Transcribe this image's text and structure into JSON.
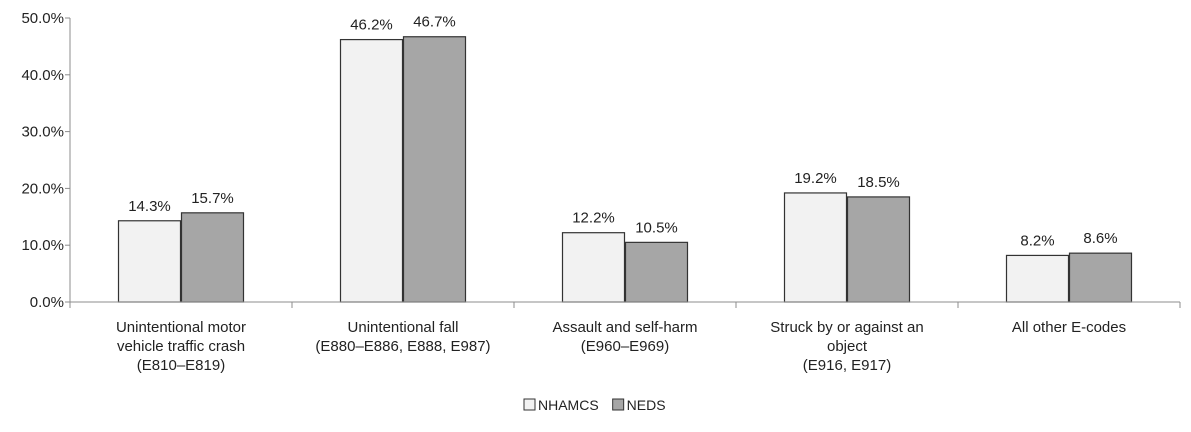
{
  "chart_data": {
    "type": "bar",
    "categories": [
      [
        "Unintentional motor",
        "vehicle traffic crash",
        "(E810–E819)"
      ],
      [
        "Unintentional fall",
        "(E880–E886, E888, E987)"
      ],
      [
        "Assault and self-harm",
        "(E960–E969)"
      ],
      [
        "Struck by or against an",
        "object",
        "(E916, E917)"
      ],
      [
        "All other E-codes"
      ]
    ],
    "series": [
      {
        "name": "NHAMCS",
        "color": "#f2f2f2",
        "values": [
          14.3,
          46.2,
          12.2,
          19.2,
          8.2
        ],
        "value_labels": [
          "14.3%",
          "46.2%",
          "12.2%",
          "19.2%",
          "8.2%"
        ]
      },
      {
        "name": "NEDS",
        "color": "#a6a6a6",
        "values": [
          15.7,
          46.7,
          10.5,
          18.5,
          8.6
        ],
        "value_labels": [
          "15.7%",
          "46.7%",
          "10.5%",
          "18.5%",
          "8.6%"
        ]
      }
    ],
    "yticks": [
      {
        "value": 0,
        "label": "0.0%"
      },
      {
        "value": 10,
        "label": "10.0%"
      },
      {
        "value": 20,
        "label": "20.0%"
      },
      {
        "value": 30,
        "label": "30.0%"
      },
      {
        "value": 40,
        "label": "40.0%"
      },
      {
        "value": 50,
        "label": "50.0%"
      }
    ],
    "ylim": [
      0,
      50
    ],
    "title": "",
    "xlabel": "",
    "ylabel": "",
    "grid": false,
    "legend_position": "bottom-center",
    "bar_outline_color": "#333333",
    "axis_color": "#8c8c8c"
  }
}
